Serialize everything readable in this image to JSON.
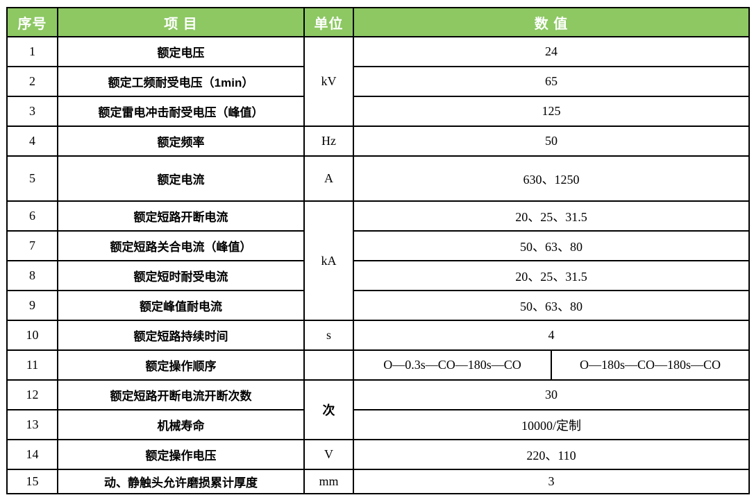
{
  "colors": {
    "header_bg": "#8dc863",
    "header_text": "#ffffff",
    "border": "#000000"
  },
  "header": {
    "no": "序号",
    "item": "项  目",
    "unit": "单位",
    "value": "数  值"
  },
  "rows": [
    {
      "no": "1",
      "item": "额定电压",
      "unit": "kV",
      "value": "24"
    },
    {
      "no": "2",
      "item": "额定工频耐受电压（1min）",
      "value": "65"
    },
    {
      "no": "3",
      "item": "额定雷电冲击耐受电压（峰值）",
      "value": "125"
    },
    {
      "no": "4",
      "item": "额定频率",
      "unit": "Hz",
      "value": "50"
    },
    {
      "no": "5",
      "item": "额定电流",
      "unit": "A",
      "value": "630、1250"
    },
    {
      "no": "6",
      "item": "额定短路开断电流",
      "unit": "kA",
      "value": "20、25、31.5"
    },
    {
      "no": "7",
      "item": "额定短路关合电流（峰值）",
      "value": "50、63、80"
    },
    {
      "no": "8",
      "item": "额定短时耐受电流",
      "value": "20、25、31.5"
    },
    {
      "no": "9",
      "item": "额定峰值耐电流",
      "value": "50、63、80"
    },
    {
      "no": "10",
      "item": "额定短路持续时间",
      "unit": "s",
      "value": "4"
    },
    {
      "no": "11",
      "item": "额定操作顺序",
      "unit": "",
      "value_left": "O—0.3s—CO—180s—CO",
      "value_right": "O—180s—CO—180s—CO"
    },
    {
      "no": "12",
      "item": "额定短路开断电流开断次数",
      "unit": "次",
      "value": "30"
    },
    {
      "no": "13",
      "item": "机械寿命",
      "value": "10000/定制"
    },
    {
      "no": "14",
      "item": "额定操作电压",
      "unit": "V",
      "value": "220、110"
    },
    {
      "no": "15",
      "item": "动、静触头允许磨损累计厚度",
      "unit": "mm",
      "value": "3"
    }
  ]
}
